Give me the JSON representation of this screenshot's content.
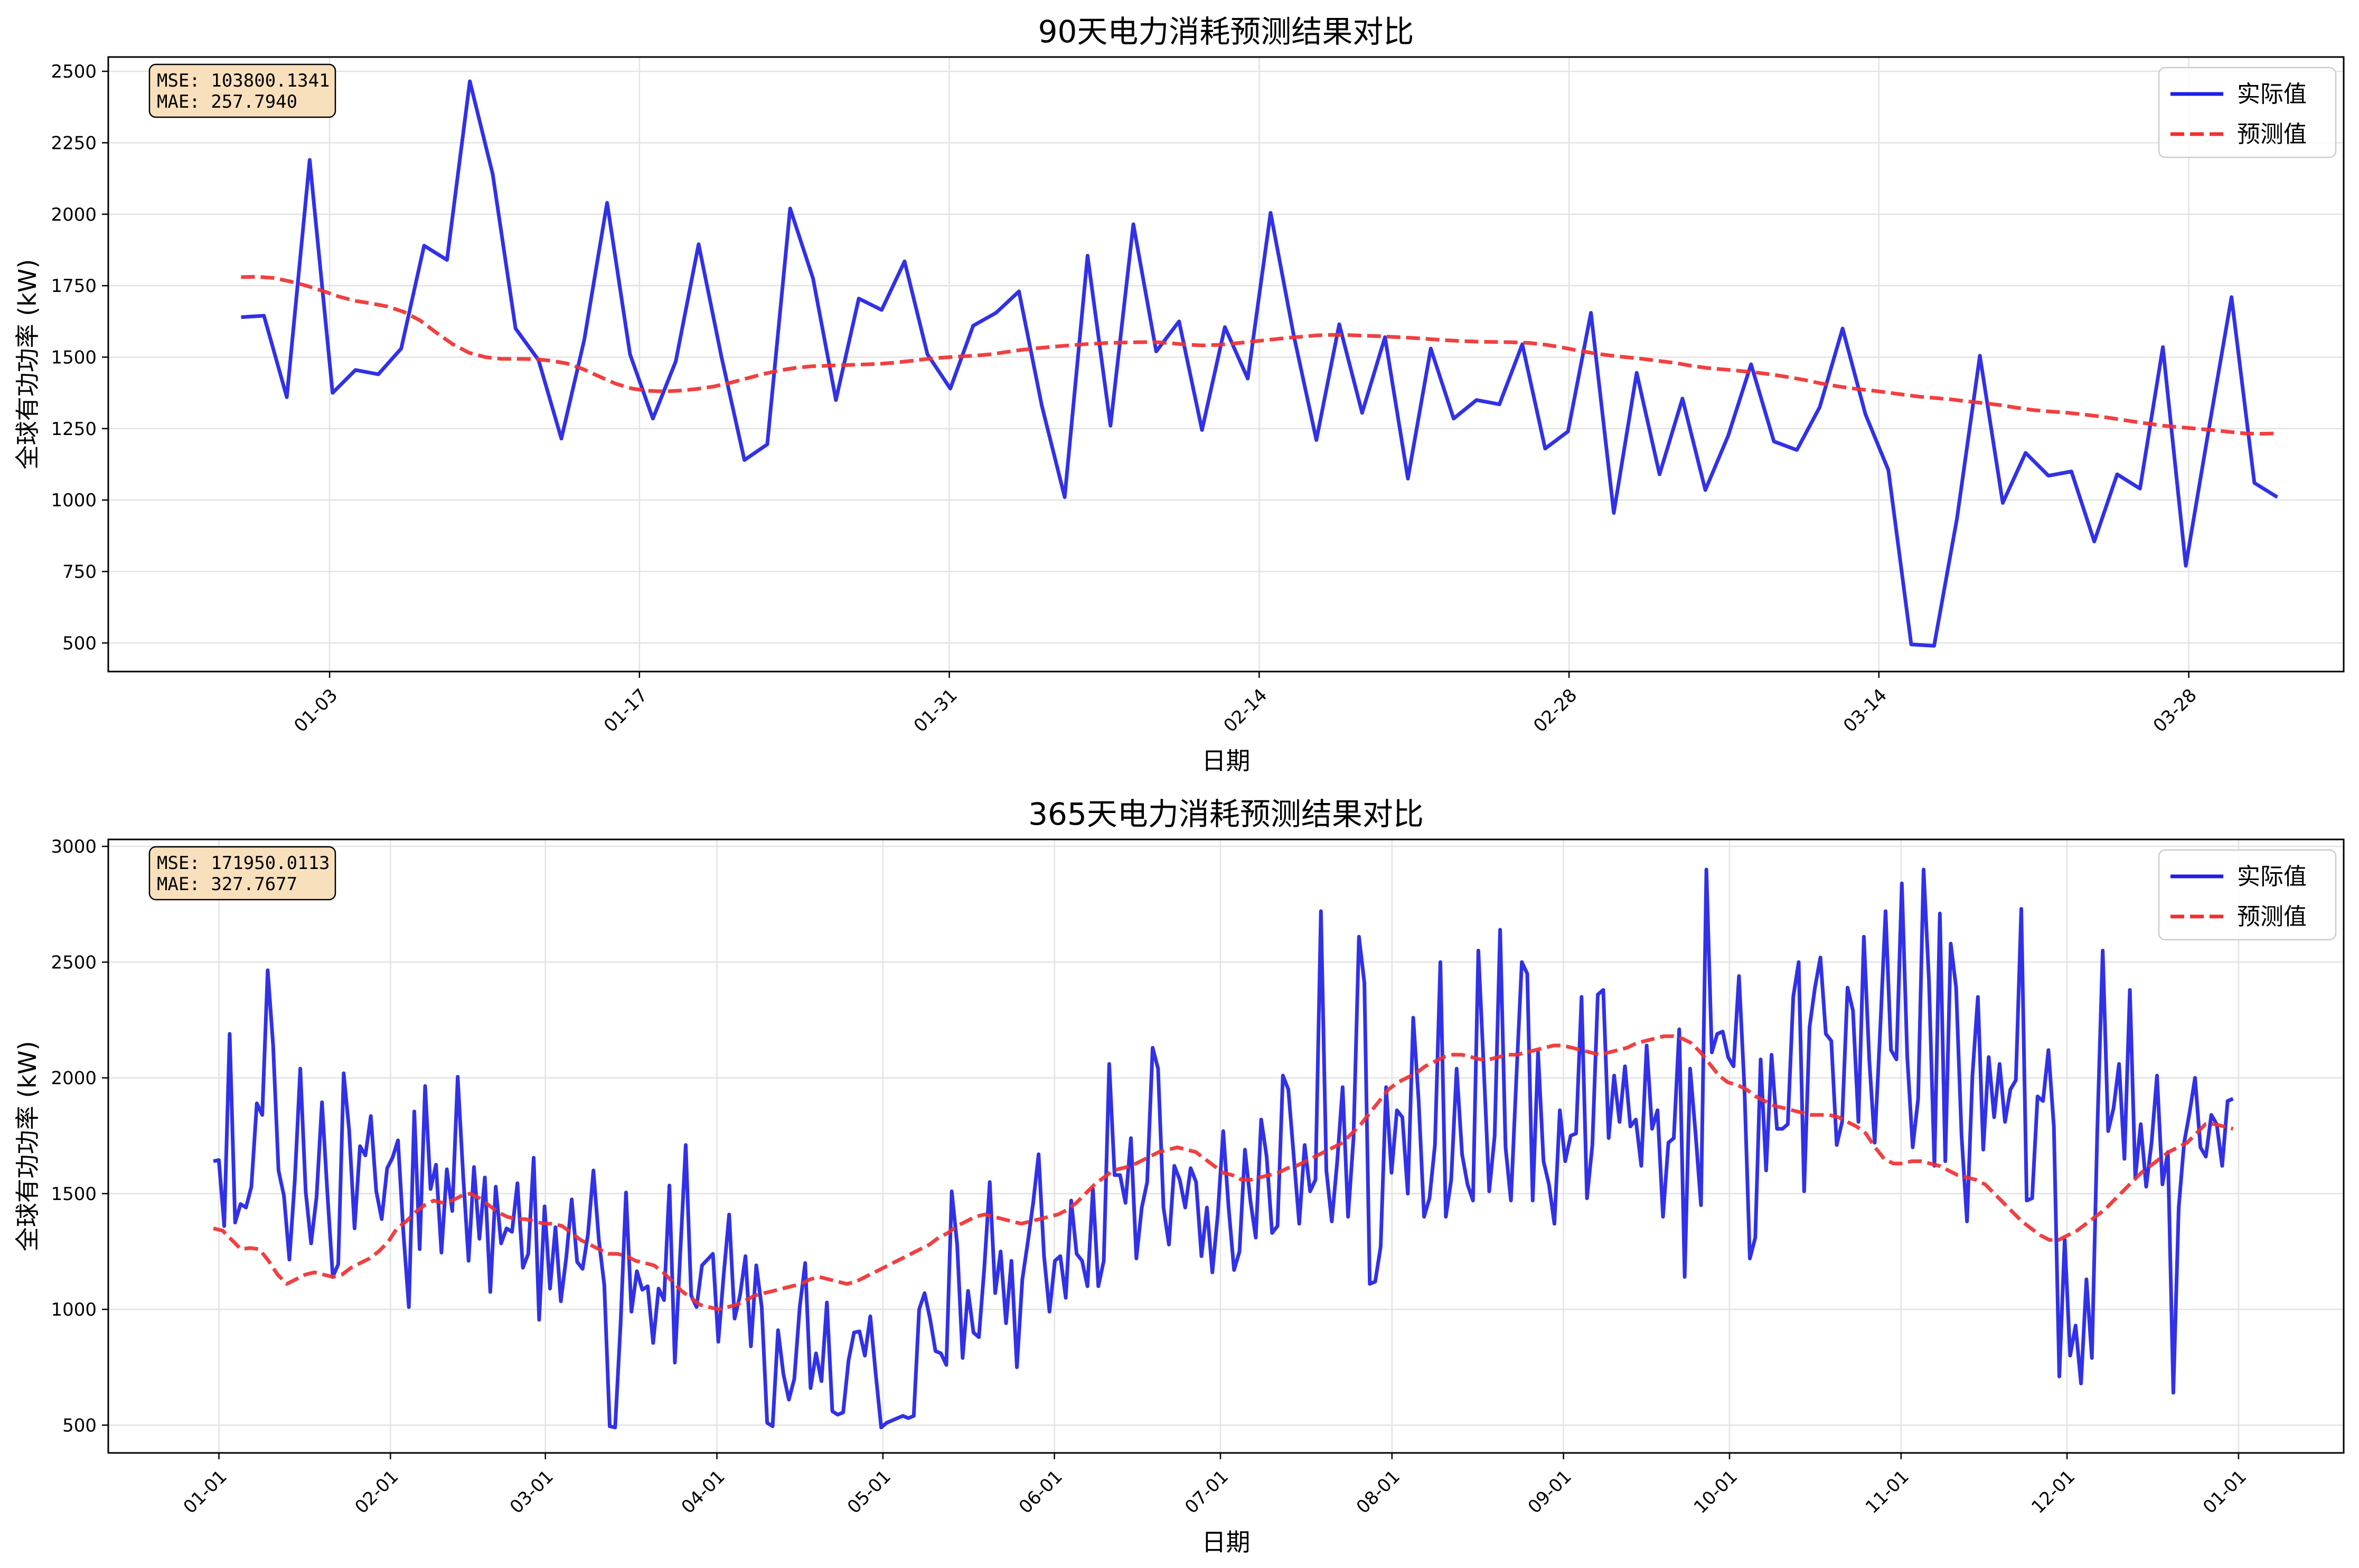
{
  "chart_data": [
    {
      "type": "line",
      "title": "90天电力消耗预测结果对比",
      "xlabel": "日期",
      "ylabel": "全球有功功率 (kW)",
      "x_start": "2009-12-30",
      "x_end": "2010-04-01",
      "xlim": [
        "2009-12-24",
        "2010-04-04"
      ],
      "ylim": [
        400,
        2550
      ],
      "x_ticks": [
        {
          "date": "2010-01-03",
          "label": "01-03"
        },
        {
          "date": "2010-01-17",
          "label": "01-17"
        },
        {
          "date": "2010-01-31",
          "label": "01-31"
        },
        {
          "date": "2010-02-14",
          "label": "02-14"
        },
        {
          "date": "2010-02-28",
          "label": "02-28"
        },
        {
          "date": "2010-03-14",
          "label": "03-14"
        },
        {
          "date": "2010-03-28",
          "label": "03-28"
        }
      ],
      "y_ticks": [
        500,
        750,
        1000,
        1250,
        1500,
        1750,
        2000,
        2250,
        2500
      ],
      "grid": true,
      "legend_position": "upper-right",
      "metrics_box": {
        "mse": "MSE: 103800.1341",
        "mae": "MAE: 257.7940"
      },
      "series": [
        {
          "name": "实际值",
          "color": "#1f1fe6",
          "style": "solid",
          "values": [
            1640,
            1645,
            1360,
            2190,
            1375,
            1455,
            1440,
            1530,
            1890,
            1840,
            2465,
            2140,
            1600,
            1490,
            1215,
            1560,
            2040,
            1510,
            1285,
            1485,
            1895,
            1500,
            1140,
            1195,
            2020,
            1775,
            1350,
            1705,
            1665,
            1835,
            1510,
            1390,
            1610,
            1655,
            1730,
            1330,
            1010,
            1855,
            1260,
            1965,
            1520,
            1625,
            1245,
            1605,
            1425,
            2005,
            1580,
            1210,
            1615,
            1305,
            1570,
            1075,
            1530,
            1285,
            1350,
            1335,
            1545,
            1180,
            1240,
            1655,
            955,
            1445,
            1090,
            1355,
            1035,
            1225,
            1475,
            1205,
            1175,
            1325,
            1600,
            1300,
            1105,
            495,
            490,
            935,
            1505,
            990,
            1165,
            1085,
            1100,
            855,
            1090,
            1040,
            1535,
            770,
            1245,
            1710,
            1060,
            1010
          ]
        },
        {
          "name": "预测值",
          "color": "#f03030",
          "style": "dashed",
          "values": [
            1780,
            1781,
            1777,
            1765,
            1750,
            1732,
            1712,
            1697,
            1688,
            1677,
            1658,
            1628,
            1585,
            1545,
            1515,
            1500,
            1494,
            1494,
            1493,
            1488,
            1478,
            1458,
            1432,
            1407,
            1390,
            1382,
            1380,
            1383,
            1389,
            1397,
            1410,
            1425,
            1440,
            1453,
            1462,
            1468,
            1470,
            1472,
            1474,
            1476,
            1480,
            1486,
            1493,
            1498,
            1502,
            1505,
            1510,
            1518,
            1526,
            1532,
            1537,
            1542,
            1546,
            1549,
            1551,
            1552,
            1553,
            1549,
            1544,
            1541,
            1543,
            1548,
            1554,
            1560,
            1566,
            1571,
            1576,
            1578,
            1577,
            1575,
            1573,
            1570,
            1567,
            1563,
            1559,
            1556,
            1554,
            1553,
            1552,
            1550,
            1544,
            1535,
            1524,
            1514,
            1506,
            1500,
            1494,
            1487,
            1480,
            1470,
            1462,
            1457,
            1452,
            1446,
            1439,
            1430,
            1420,
            1408,
            1398,
            1390,
            1384,
            1377,
            1369,
            1362,
            1357,
            1352,
            1345,
            1339,
            1332,
            1323,
            1315,
            1310,
            1306,
            1300,
            1293,
            1285,
            1276,
            1268,
            1260,
            1255,
            1250,
            1245,
            1239,
            1233,
            1232,
            1233
          ]
        }
      ]
    },
    {
      "type": "line",
      "title": "365天电力消耗预测结果对比",
      "xlabel": "日期",
      "ylabel": "全球有功功率 (kW)",
      "x_start": "2009-12-31",
      "x_end": "2010-12-31",
      "xlim": [
        "2009-12-12",
        "2011-01-20"
      ],
      "ylim": [
        380,
        3030
      ],
      "x_ticks": [
        {
          "date": "2010-01-01",
          "label": "01-01"
        },
        {
          "date": "2010-02-01",
          "label": "02-01"
        },
        {
          "date": "2010-03-01",
          "label": "03-01"
        },
        {
          "date": "2010-04-01",
          "label": "04-01"
        },
        {
          "date": "2010-05-01",
          "label": "05-01"
        },
        {
          "date": "2010-06-01",
          "label": "06-01"
        },
        {
          "date": "2010-07-01",
          "label": "07-01"
        },
        {
          "date": "2010-08-01",
          "label": "08-01"
        },
        {
          "date": "2010-09-01",
          "label": "09-01"
        },
        {
          "date": "2010-10-01",
          "label": "10-01"
        },
        {
          "date": "2010-11-01",
          "label": "11-01"
        },
        {
          "date": "2010-12-01",
          "label": "12-01"
        },
        {
          "date": "2011-01-01",
          "label": "01-01"
        }
      ],
      "y_ticks": [
        500,
        1000,
        1500,
        2000,
        2500,
        3000
      ],
      "grid": true,
      "legend_position": "upper-right",
      "metrics_box": {
        "mse": "MSE: 171950.0113",
        "mae": "MAE: 327.7677"
      },
      "series": [
        {
          "name": "实际值",
          "color": "#1f1fe6",
          "style": "solid",
          "values": [
            1640,
            1645,
            1360,
            2190,
            1375,
            1455,
            1440,
            1530,
            1890,
            1840,
            2465,
            2140,
            1600,
            1490,
            1215,
            1560,
            2040,
            1510,
            1285,
            1485,
            1895,
            1500,
            1140,
            1195,
            2020,
            1775,
            1350,
            1705,
            1665,
            1835,
            1510,
            1390,
            1610,
            1655,
            1730,
            1330,
            1010,
            1855,
            1260,
            1965,
            1520,
            1625,
            1245,
            1605,
            1425,
            2005,
            1580,
            1210,
            1615,
            1305,
            1570,
            1075,
            1530,
            1285,
            1350,
            1335,
            1545,
            1180,
            1240,
            1655,
            955,
            1445,
            1090,
            1355,
            1035,
            1225,
            1475,
            1205,
            1175,
            1325,
            1600,
            1300,
            1105,
            495,
            490,
            935,
            1505,
            990,
            1165,
            1085,
            1100,
            855,
            1090,
            1040,
            1535,
            770,
            1245,
            1710,
            1060,
            1010,
            1190,
            1215,
            1240,
            860,
            1150,
            1410,
            960,
            1060,
            1230,
            840,
            1190,
            1010,
            510,
            495,
            910,
            720,
            610,
            700,
            1010,
            1200,
            660,
            810,
            690,
            1030,
            560,
            545,
            555,
            780,
            900,
            905,
            800,
            970,
            720,
            490,
            510,
            520,
            530,
            540,
            530,
            540,
            1000,
            1070,
            960,
            820,
            810,
            760,
            1510,
            1280,
            790,
            1080,
            900,
            880,
            1180,
            1550,
            1070,
            1250,
            940,
            1210,
            750,
            1130,
            1290,
            1460,
            1670,
            1230,
            990,
            1210,
            1230,
            1050,
            1470,
            1240,
            1210,
            1100,
            1520,
            1100,
            1210,
            2060,
            1580,
            1580,
            1460,
            1740,
            1220,
            1440,
            1550,
            2130,
            2040,
            1440,
            1280,
            1620,
            1560,
            1440,
            1610,
            1550,
            1230,
            1440,
            1160,
            1410,
            1770,
            1440,
            1170,
            1250,
            1690,
            1470,
            1310,
            1820,
            1660,
            1330,
            1360,
            2010,
            1950,
            1660,
            1370,
            1710,
            1510,
            1560,
            2720,
            1600,
            1380,
            1640,
            1960,
            1400,
            1740,
            2610,
            2410,
            1110,
            1120,
            1270,
            1960,
            1590,
            1860,
            1830,
            1500,
            2260,
            1900,
            1400,
            1480,
            1710,
            2500,
            1400,
            1560,
            2040,
            1670,
            1540,
            1470,
            2550,
            2040,
            1510,
            1750,
            2640,
            1700,
            1470,
            2000,
            2500,
            2450,
            1470,
            2110,
            1640,
            1540,
            1370,
            1860,
            1640,
            1750,
            1760,
            2350,
            1480,
            1710,
            2360,
            2380,
            1740,
            2010,
            1810,
            2050,
            1790,
            1820,
            1620,
            2140,
            1780,
            1860,
            1400,
            1720,
            1740,
            2210,
            1140,
            2040,
            1760,
            1450,
            2900,
            2110,
            2190,
            2200,
            2090,
            2050,
            2440,
            1960,
            1220,
            1310,
            2080,
            1600,
            2100,
            1780,
            1780,
            1800,
            2350,
            2500,
            1510,
            2220,
            2390,
            2520,
            2190,
            2160,
            1710,
            1810,
            2390,
            2290,
            1810,
            2610,
            2080,
            1720,
            2200,
            2720,
            2120,
            2080,
            2840,
            2090,
            1700,
            1910,
            2900,
            2420,
            1620,
            2710,
            1640,
            2580,
            2390,
            1750,
            1380,
            2010,
            2350,
            1690,
            2090,
            1830,
            2060,
            1810,
            1950,
            1990,
            2730,
            1470,
            1480,
            1920,
            1900,
            2120,
            1790,
            710,
            1300,
            800,
            930,
            680,
            1130,
            790,
            1770,
            2550,
            1770,
            1870,
            2060,
            1650,
            2380,
            1570,
            1800,
            1530,
            1720,
            2010,
            1540,
            1680,
            640,
            1440,
            1720,
            1850,
            2000,
            1700,
            1660,
            1840,
            1800,
            1620,
            1900,
            1910
          ]
        },
        {
          "name": "预测值",
          "color": "#f03030",
          "style": "dashed",
          "values": [
            1350,
            1340,
            1300,
            1260,
            1265,
            1260,
            1210,
            1150,
            1110,
            1130,
            1150,
            1160,
            1150,
            1140,
            1150,
            1180,
            1200,
            1220,
            1250,
            1290,
            1350,
            1380,
            1420,
            1450,
            1470,
            1460,
            1470,
            1490,
            1500,
            1480,
            1450,
            1420,
            1400,
            1390,
            1390,
            1380,
            1370,
            1370,
            1360,
            1330,
            1300,
            1280,
            1260,
            1240,
            1240,
            1230,
            1210,
            1200,
            1190,
            1160,
            1120,
            1080,
            1050,
            1020,
            1010,
            1000,
            1010,
            1020,
            1040,
            1060,
            1070,
            1080,
            1090,
            1100,
            1110,
            1130,
            1140,
            1130,
            1120,
            1110,
            1120,
            1140,
            1160,
            1180,
            1200,
            1220,
            1240,
            1260,
            1280,
            1310,
            1330,
            1360,
            1380,
            1400,
            1410,
            1400,
            1390,
            1380,
            1370,
            1380,
            1390,
            1400,
            1410,
            1430,
            1460,
            1500,
            1540,
            1570,
            1600,
            1610,
            1620,
            1640,
            1660,
            1680,
            1690,
            1700,
            1690,
            1680,
            1650,
            1620,
            1590,
            1580,
            1560,
            1560,
            1570,
            1580,
            1590,
            1610,
            1620,
            1640,
            1660,
            1680,
            1700,
            1720,
            1760,
            1800,
            1850,
            1900,
            1950,
            1980,
            2000,
            2020,
            2050,
            2070,
            2090,
            2100,
            2100,
            2090,
            2080,
            2080,
            2090,
            2100,
            2100,
            2110,
            2120,
            2130,
            2140,
            2140,
            2130,
            2120,
            2110,
            2100,
            2110,
            2120,
            2130,
            2150,
            2160,
            2170,
            2180,
            2180,
            2170,
            2150,
            2110,
            2060,
            2010,
            1980,
            1970,
            1950,
            1920,
            1900,
            1880,
            1870,
            1860,
            1850,
            1840,
            1840,
            1840,
            1830,
            1810,
            1790,
            1760,
            1700,
            1650,
            1630,
            1630,
            1640,
            1640,
            1630,
            1620,
            1600,
            1580,
            1570,
            1560,
            1540,
            1500,
            1460,
            1420,
            1380,
            1350,
            1320,
            1300,
            1300,
            1320,
            1340,
            1370,
            1400,
            1430,
            1470,
            1510,
            1550,
            1590,
            1620,
            1650,
            1680,
            1700,
            1720,
            1760,
            1800,
            1800,
            1790,
            1780
          ]
        }
      ]
    }
  ]
}
